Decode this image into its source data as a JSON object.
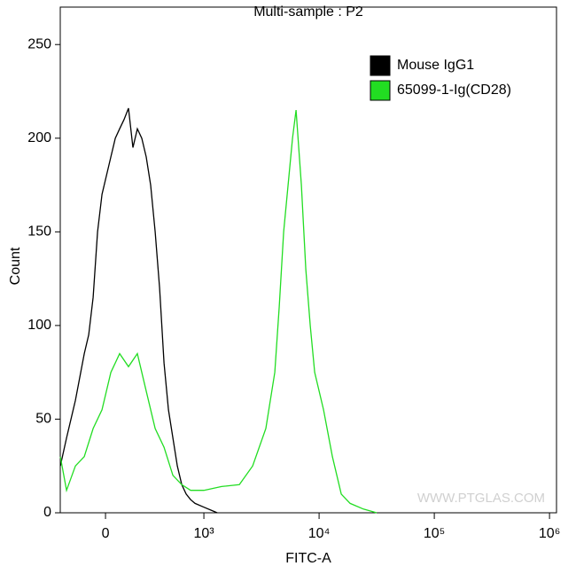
{
  "chart_data": {
    "type": "line",
    "title": "Multi-sample : P2",
    "x_label": "FITC-A",
    "y_label": "Count",
    "watermark": "WWW.PTGLAS.COM",
    "xscale": "biexponential",
    "xlim": [
      -460,
      1150000
    ],
    "xticks": [
      0,
      {
        "value": 1000,
        "label": "10³"
      },
      {
        "value": 10000,
        "label": "10⁴"
      },
      {
        "value": 100000,
        "label": "10⁵"
      },
      {
        "value": 1000000,
        "label": "10⁶"
      }
    ],
    "ylim": [
      0,
      270
    ],
    "yticks": [
      0,
      50,
      100,
      150,
      200,
      250
    ],
    "legend": "top-right",
    "series": [
      {
        "name": "Mouse IgG1",
        "color": "#000000",
        "x": [
          -459,
          -396,
          -306,
          -216,
          -171,
          -126,
          -81,
          -36,
          9,
          54,
          99,
          144,
          189,
          234,
          279,
          324,
          369,
          414,
          459,
          505,
          550,
          595,
          640,
          685,
          730,
          775,
          820,
          865,
          910,
          1000,
          1194,
          1304
        ],
        "values": [
          25,
          40,
          60,
          85,
          95,
          115,
          150,
          170,
          180,
          190,
          200,
          205,
          210,
          216,
          195,
          205,
          200,
          190,
          175,
          150,
          120,
          80,
          55,
          40,
          25,
          15,
          10,
          7,
          5,
          3,
          1,
          0
        ]
      },
      {
        "name": "65099-1-Ig(CD28)",
        "color": "#22dd22",
        "x": [
          -459,
          -396,
          -306,
          -216,
          -126,
          -36,
          54,
          99,
          144,
          234,
          324,
          414,
          505,
          595,
          685,
          775,
          865,
          1000,
          1425,
          2031,
          2649,
          3453,
          4125,
          4508,
          4925,
          5383,
          5878,
          6310,
          7015,
          7670,
          8375,
          9160,
          10920,
          13040,
          15570,
          18580,
          24270,
          31620
        ],
        "values": [
          30,
          12,
          25,
          30,
          45,
          55,
          75,
          80,
          85,
          78,
          85,
          65,
          45,
          35,
          20,
          15,
          12,
          12,
          14,
          15,
          25,
          45,
          75,
          110,
          150,
          175,
          200,
          215,
          175,
          130,
          100,
          75,
          55,
          30,
          10,
          5,
          2,
          0
        ]
      }
    ]
  }
}
